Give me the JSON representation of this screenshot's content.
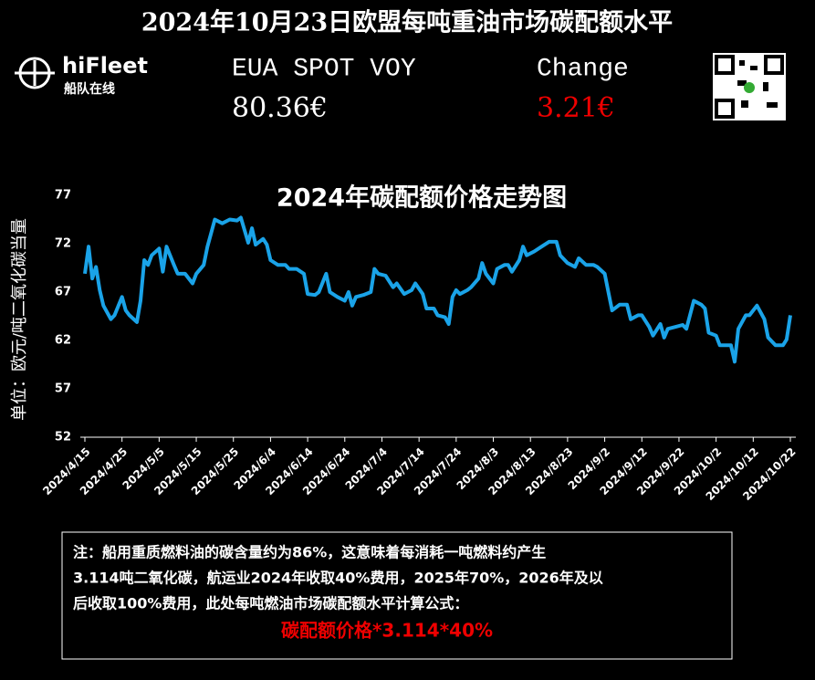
{
  "header": {
    "title": "2024年10月23日欧盟每吨重油市场碳配额水平",
    "logo_name": "hiFleet",
    "logo_sub": "船队在线",
    "metric_label": "EUA SPOT VOY",
    "metric_value": "80.36€",
    "change_label": "Change",
    "change_value": "3.21€"
  },
  "chart_data": {
    "type": "line",
    "title": "2024年碳配额价格走势图",
    "y_label": "单位：欧元/吨二氧化碳当量",
    "color": "#1aa3e8",
    "x": [
      "2024/4/15",
      "2024/4/16",
      "2024/4/17",
      "2024/4/18",
      "2024/4/19",
      "2024/4/20",
      "2024/4/22",
      "2024/4/23",
      "2024/4/25",
      "2024/4/26",
      "2024/4/27",
      "2024/4/29",
      "2024/4/30",
      "2024/5/1",
      "2024/5/2",
      "2024/5/3",
      "2024/5/5",
      "2024/5/6",
      "2024/5/7",
      "2024/5/9",
      "2024/5/10",
      "2024/5/12",
      "2024/5/14",
      "2024/5/15",
      "2024/5/17",
      "2024/5/18",
      "2024/5/20",
      "2024/5/22",
      "2024/5/24",
      "2024/5/26",
      "2024/5/27",
      "2024/5/29",
      "2024/5/30",
      "2024/5/31",
      "2024/6/2",
      "2024/6/3",
      "2024/6/4",
      "2024/6/6",
      "2024/6/8",
      "2024/6/9",
      "2024/6/11",
      "2024/6/13",
      "2024/6/14",
      "2024/6/16",
      "2024/6/17",
      "2024/6/19",
      "2024/6/20",
      "2024/6/22",
      "2024/6/24",
      "2024/6/25",
      "2024/6/26",
      "2024/6/27",
      "2024/6/29",
      "2024/7/1",
      "2024/7/2",
      "2024/7/3",
      "2024/7/5",
      "2024/7/7",
      "2024/7/8",
      "2024/7/10",
      "2024/7/12",
      "2024/7/13",
      "2024/7/15",
      "2024/7/16",
      "2024/7/18",
      "2024/7/19",
      "2024/7/21",
      "2024/7/22",
      "2024/7/23",
      "2024/7/24",
      "2024/7/25",
      "2024/7/27",
      "2024/7/28",
      "2024/7/30",
      "2024/7/31",
      "2024/8/1",
      "2024/8/3",
      "2024/8/4",
      "2024/8/6",
      "2024/8/7",
      "2024/8/8",
      "2024/8/10",
      "2024/8/11",
      "2024/8/12",
      "2024/8/14",
      "2024/8/16",
      "2024/8/18",
      "2024/8/20",
      "2024/8/21",
      "2024/8/23",
      "2024/8/25",
      "2024/8/26",
      "2024/8/28",
      "2024/8/30",
      "2024/8/31",
      "2024/9/2",
      "2024/9/3",
      "2024/9/4",
      "2024/9/6",
      "2024/9/8",
      "2024/9/9",
      "2024/9/11",
      "2024/9/12",
      "2024/9/14",
      "2024/9/15",
      "2024/9/17",
      "2024/9/18",
      "2024/9/19",
      "2024/9/21",
      "2024/9/23",
      "2024/9/24",
      "2024/9/26",
      "2024/9/28",
      "2024/9/29",
      "2024/9/30",
      "2024/10/2",
      "2024/10/3",
      "2024/10/5",
      "2024/10/6",
      "2024/10/7",
      "2024/10/8",
      "2024/10/10",
      "2024/10/11",
      "2024/10/13",
      "2024/10/15",
      "2024/10/16",
      "2024/10/18",
      "2024/10/20",
      "2024/10/21",
      "2024/10/22"
    ],
    "values": [
      68.9,
      71.7,
      68.4,
      69.6,
      67.2,
      65.6,
      64.2,
      64.6,
      66.5,
      65.1,
      64.6,
      63.9,
      66.1,
      70.3,
      69.8,
      70.8,
      71.5,
      69.1,
      71.7,
      69.8,
      68.9,
      68.9,
      67.9,
      68.9,
      69.8,
      71.7,
      74.5,
      74.1,
      74.5,
      74.4,
      74.7,
      72.1,
      73.6,
      71.9,
      72.5,
      71.9,
      70.3,
      69.8,
      69.8,
      69.4,
      69.4,
      68.9,
      66.8,
      66.7,
      67.0,
      68.9,
      67.0,
      66.5,
      66.1,
      67.0,
      65.6,
      66.5,
      66.7,
      67.0,
      69.4,
      68.9,
      68.7,
      67.5,
      67.9,
      66.8,
      67.2,
      67.9,
      66.8,
      65.3,
      65.3,
      64.6,
      64.4,
      63.7,
      66.5,
      67.2,
      66.8,
      67.2,
      67.5,
      68.4,
      70.0,
      68.9,
      67.9,
      69.4,
      69.8,
      69.8,
      69.1,
      70.3,
      71.7,
      70.8,
      71.2,
      71.7,
      72.2,
      72.2,
      70.8,
      70.0,
      69.6,
      70.5,
      69.8,
      69.8,
      69.6,
      68.9,
      67.0,
      65.1,
      65.7,
      65.7,
      64.2,
      64.6,
      64.6,
      63.4,
      62.5,
      63.7,
      62.3,
      63.2,
      63.4,
      63.6,
      63.2,
      66.1,
      65.7,
      65.3,
      62.8,
      62.5,
      61.5,
      61.5,
      61.5,
      59.8,
      63.2,
      64.6,
      64.6,
      65.6,
      64.2,
      62.3,
      61.5,
      61.5,
      62.1,
      64.6
    ],
    "xlim": [
      "2024/4/15",
      "2024/10/22"
    ],
    "xticks": [
      "2024/4/15",
      "2024/4/25",
      "2024/5/5",
      "2024/5/15",
      "2024/5/25",
      "2024/6/4",
      "2024/6/14",
      "2024/6/24",
      "2024/7/4",
      "2024/7/14",
      "2024/7/24",
      "2024/8/3",
      "2024/8/13",
      "2024/8/23",
      "2024/9/2",
      "2024/9/12",
      "2024/9/22",
      "2024/10/2",
      "2024/10/12",
      "2024/10/22"
    ],
    "ylim": [
      52,
      77
    ],
    "yticks": [
      52,
      57,
      62,
      67,
      72,
      77
    ]
  },
  "note": {
    "lines": [
      "注：船用重质燃料油的碳含量约为86%，这意味着每消耗一吨燃料约产生",
      "3.114吨二氧化碳，航运业2024年收取40%费用，2025年70%，2026年及以",
      "后收取100%费用，此处每吨燃油市场碳配额水平计算公式："
    ],
    "formula": "碳配额价格*3.114*40%"
  }
}
